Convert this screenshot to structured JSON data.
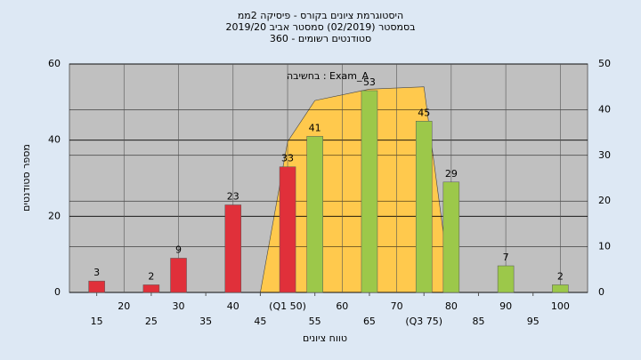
{
  "chart_data": {
    "type": "bar",
    "title": [
      "היסטוגרמת ציונים בקורס - פיסיקה 2ממ",
      "בסמסטר  (02/2019)  סמסטר אביב 2019/20",
      "סטודנטים רשומים - 360"
    ],
    "annotation": "בחשיבה : Exam_A",
    "ylabel": "מספר סטודנטים",
    "xlabel": "טווח ציונים",
    "xlim": [
      10,
      105
    ],
    "xticks": [
      15,
      20,
      25,
      30,
      35,
      40,
      45,
      {
        "value": 50,
        "label": "(Q1 50)"
      },
      55,
      60,
      65,
      70,
      {
        "value": 75,
        "label": "(Q3 75)"
      },
      80,
      85,
      90,
      95,
      100
    ],
    "ylim": [
      0,
      60
    ],
    "yticks": [
      0,
      20,
      40,
      60
    ],
    "y2lim": [
      0,
      50
    ],
    "y2ticks": [
      0,
      10,
      20,
      30,
      40,
      50
    ],
    "grid": true,
    "area": {
      "color": "#ffc94d",
      "axis": "y2",
      "x": [
        45,
        50,
        55,
        65,
        75,
        80
      ],
      "values": [
        0,
        33,
        42,
        44.5,
        45,
        0
      ]
    },
    "series": [
      {
        "color": "#e0303a",
        "x": [
          15,
          25,
          30,
          40,
          50
        ],
        "values": [
          3,
          2,
          9,
          23,
          33
        ]
      },
      {
        "color": "#9cc84a",
        "x": [
          55,
          65,
          75,
          80,
          90,
          100
        ],
        "values": [
          41,
          53,
          45,
          29,
          7,
          2
        ]
      }
    ]
  }
}
